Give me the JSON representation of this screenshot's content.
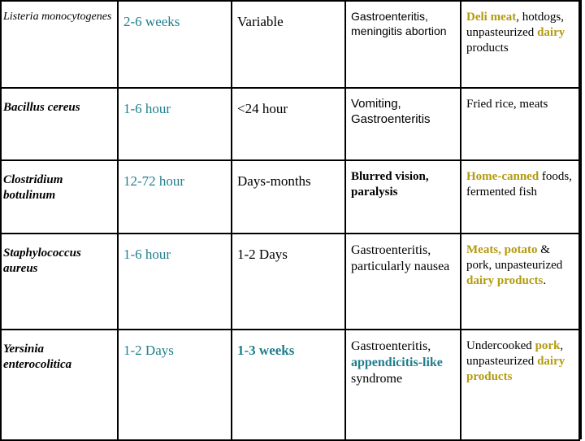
{
  "rows": [
    {
      "organism": "Listeria monocytogenes",
      "incubation": "2-6 weeks",
      "duration": "Variable",
      "symptoms": "Gastroenteritis, meningitis abortion",
      "foods": [
        "Deli meat",
        ", hotdogs, unpasteurized ",
        "dairy",
        " products"
      ]
    },
    {
      "organism": "Bacillus cereus",
      "incubation": "1-6 hour",
      "duration": "<24 hour",
      "symptoms": "Vomiting, Gastroenteritis",
      "foods": [
        "Fried rice, meats"
      ]
    },
    {
      "organism": "Clostridium botulinum",
      "incubation": "12-72 hour",
      "duration": "Days-months",
      "symptoms": "Blurred vision, paralysis",
      "foods": [
        "Home-canned",
        " foods, fermented fish"
      ]
    },
    {
      "organism": "Staphylococcus aureus",
      "incubation": "1-6 hour",
      "duration": "1-2 Days",
      "symptoms": "Gastroenteritis, particularly nausea",
      "foods": [
        "Meats, potato",
        " & pork, unpasteurized ",
        "dairy products",
        "."
      ]
    },
    {
      "organism": "Yersinia enterocolitica",
      "incubation": "1-2 Days",
      "duration": "1-3 weeks",
      "symptoms_1": "Gastroenteritis, ",
      "symptoms_2": "appendicitis-like",
      "symptoms_3": " syndrome",
      "foods": [
        "Undercooked ",
        "pork",
        ", unpasteurized ",
        "dairy products"
      ]
    }
  ],
  "colors": {
    "teal": "#1f7f8c",
    "olive": "#b39b0f"
  }
}
